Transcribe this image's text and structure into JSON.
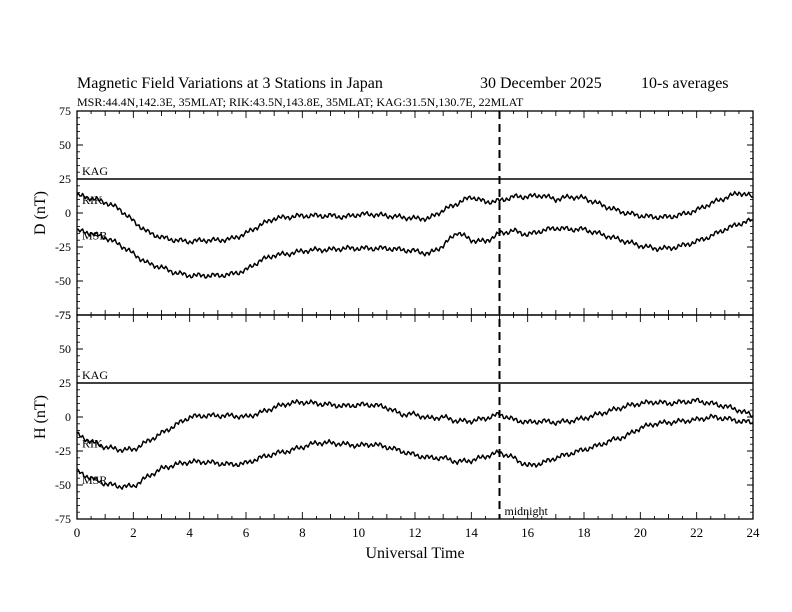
{
  "header": {
    "title": "Magnetic Field Variations at 3 Stations in Japan",
    "date": "30 December 2025",
    "averaging": "10-s averages",
    "stations_line": "MSR:44.4N,142.3E, 35MLAT;  RIK:43.5N,143.8E, 35MLAT;  KAG:31.5N,130.7E, 22MLAT"
  },
  "colors": {
    "axis": "#000000",
    "trace": "#000000",
    "background": "#ffffff"
  },
  "chart_data": [
    {
      "type": "line",
      "panel": "D",
      "ylabel": "D (nT)",
      "xlabel": "",
      "xlim": [
        0,
        24
      ],
      "ylim": [
        -75,
        75
      ],
      "yticks": [
        75,
        50,
        25,
        0,
        -25,
        -50,
        -75
      ],
      "grid": false,
      "reference_line": {
        "label": "KAG",
        "y": 25
      },
      "series": [
        {
          "name": "RIK",
          "x": [
            0,
            0.5,
            1,
            1.5,
            2,
            2.5,
            3,
            3.5,
            4,
            4.5,
            5,
            5.5,
            6,
            6.5,
            7,
            7.5,
            8,
            8.5,
            9,
            9.5,
            10,
            10.5,
            11,
            11.5,
            12,
            12.5,
            13,
            13.5,
            14,
            14.5,
            15,
            15.5,
            16,
            16.5,
            17,
            17.5,
            18,
            18.5,
            19,
            19.5,
            20,
            20.5,
            21,
            21.5,
            22,
            22.5,
            23,
            23.5,
            24
          ],
          "values": [
            13,
            11,
            8,
            3,
            -6,
            -14,
            -18,
            -20,
            -21,
            -20,
            -20,
            -19,
            -15,
            -9,
            -4,
            -3,
            -2,
            -2,
            -2,
            -3,
            -1,
            -1,
            -2,
            -3,
            -4,
            -4,
            2,
            7,
            12,
            8,
            9,
            12,
            12,
            13,
            10,
            12,
            11,
            7,
            3,
            0,
            -2,
            -3,
            -3,
            -1,
            2,
            7,
            11,
            15,
            12
          ]
        },
        {
          "name": "MSR",
          "x": [
            0,
            0.5,
            1,
            1.5,
            2,
            2.5,
            3,
            3.5,
            4,
            4.5,
            5,
            5.5,
            6,
            6.5,
            7,
            7.5,
            8,
            8.5,
            9,
            9.5,
            10,
            10.5,
            11,
            11.5,
            12,
            12.5,
            13,
            13.5,
            14,
            14.5,
            15,
            15.5,
            16,
            16.5,
            17,
            17.5,
            18,
            18.5,
            19,
            19.5,
            20,
            20.5,
            21,
            21.5,
            22,
            22.5,
            23,
            23.5,
            24
          ],
          "values": [
            -13,
            -15,
            -18,
            -23,
            -30,
            -37,
            -40,
            -44,
            -46,
            -46,
            -46,
            -45,
            -42,
            -35,
            -31,
            -30,
            -28,
            -27,
            -27,
            -26,
            -26,
            -26,
            -26,
            -27,
            -28,
            -30,
            -24,
            -14,
            -20,
            -21,
            -15,
            -13,
            -16,
            -13,
            -11,
            -12,
            -12,
            -15,
            -18,
            -21,
            -24,
            -26,
            -26,
            -24,
            -21,
            -17,
            -12,
            -8,
            -5
          ]
        }
      ]
    },
    {
      "type": "line",
      "panel": "H",
      "ylabel": "H (nT)",
      "xlabel": "Universal Time",
      "xlim": [
        0,
        24
      ],
      "ylim": [
        -75,
        75
      ],
      "xticks": [
        0,
        2,
        4,
        6,
        8,
        10,
        12,
        14,
        16,
        18,
        20,
        22,
        24
      ],
      "yticks": [
        75,
        50,
        25,
        0,
        -25,
        -50,
        -75
      ],
      "grid": false,
      "reference_line": {
        "label": "KAG",
        "y": 25
      },
      "annotation": {
        "label": "midnight",
        "x": 15,
        "style": "dashed vertical line"
      },
      "series": [
        {
          "name": "RIK",
          "x": [
            0,
            0.5,
            1,
            1.5,
            2,
            2.5,
            3,
            3.5,
            4,
            4.5,
            5,
            5.5,
            6,
            6.5,
            7,
            7.5,
            8,
            8.5,
            9,
            9.5,
            10,
            10.5,
            11,
            11.5,
            12,
            12.5,
            13,
            13.5,
            14,
            14.5,
            15,
            15.5,
            16,
            16.5,
            17,
            17.5,
            18,
            18.5,
            19,
            19.5,
            20,
            20.5,
            21,
            21.5,
            22,
            22.5,
            23,
            23.5,
            24
          ],
          "values": [
            -13,
            -18,
            -22,
            -24,
            -24,
            -18,
            -12,
            -6,
            0,
            1,
            1,
            1,
            0,
            3,
            7,
            10,
            11,
            10,
            9,
            8,
            9,
            9,
            7,
            2,
            2,
            -1,
            0,
            -3,
            -3,
            -1,
            2,
            -2,
            -4,
            -3,
            -4,
            -3,
            -1,
            2,
            5,
            8,
            10,
            11,
            10,
            11,
            12,
            10,
            8,
            5,
            1
          ]
        },
        {
          "name": "MSR",
          "x": [
            0,
            0.5,
            1,
            1.5,
            2,
            2.5,
            3,
            3.5,
            4,
            4.5,
            5,
            5.5,
            6,
            6.5,
            7,
            7.5,
            8,
            8.5,
            9,
            9.5,
            10,
            10.5,
            11,
            11.5,
            12,
            12.5,
            13,
            13.5,
            14,
            14.5,
            15,
            15.5,
            16,
            16.5,
            17,
            17.5,
            18,
            18.5,
            19,
            19.5,
            20,
            20.5,
            21,
            21.5,
            22,
            22.5,
            23,
            23.5,
            24
          ],
          "values": [
            -40,
            -45,
            -49,
            -51,
            -51,
            -44,
            -38,
            -35,
            -33,
            -33,
            -34,
            -35,
            -34,
            -30,
            -27,
            -25,
            -22,
            -19,
            -19,
            -20,
            -21,
            -20,
            -22,
            -25,
            -28,
            -30,
            -30,
            -33,
            -32,
            -29,
            -26,
            -30,
            -36,
            -34,
            -30,
            -27,
            -24,
            -21,
            -17,
            -14,
            -8,
            -5,
            -4,
            -3,
            -2,
            0,
            -1,
            -3,
            -4
          ]
        }
      ]
    }
  ]
}
